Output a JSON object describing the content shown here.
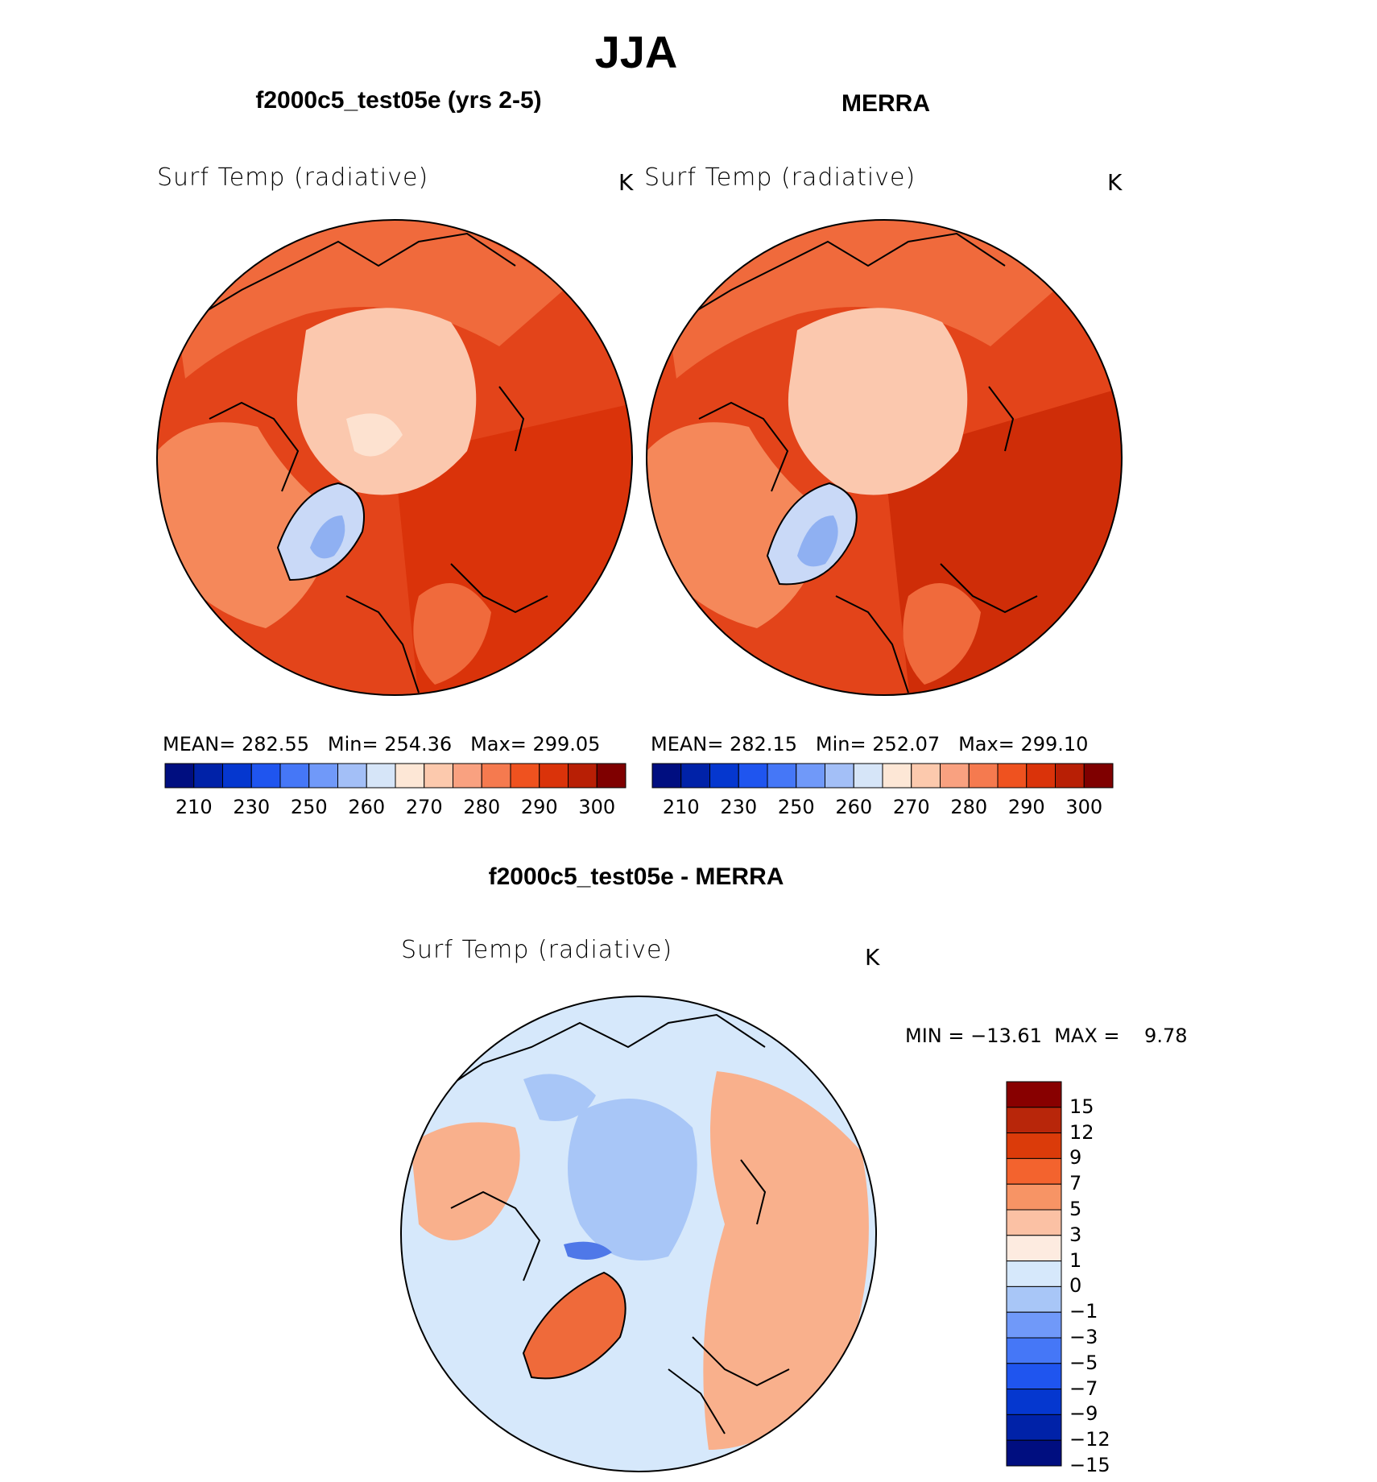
{
  "figure": {
    "title": "JJA",
    "panels": [
      {
        "id": "model",
        "title": "f2000c5_test05e (yrs 2-5)",
        "variable": "Surf Temp (radiative)",
        "units": "K",
        "stats": {
          "mean_label": "MEAN=",
          "mean": "282.55",
          "min_label": "Min=",
          "min": "254.36",
          "max_label": "Max=",
          "max": "299.05"
        }
      },
      {
        "id": "obs",
        "title": "MERRA",
        "variable": "Surf Temp (radiative)",
        "units": "K",
        "stats": {
          "mean_label": "MEAN=",
          "mean": "282.15",
          "min_label": "Min=",
          "min": "252.07",
          "max_label": "Max=",
          "max": "299.10"
        }
      }
    ],
    "abs_colorbar": {
      "colors": [
        "#000e80",
        "#0022a8",
        "#0537cf",
        "#1f55ef",
        "#4577f7",
        "#7099f9",
        "#a3bff7",
        "#d6e5f8",
        "#fde7d6",
        "#fcc9ad",
        "#f9a180",
        "#f57a4f",
        "#ef521f",
        "#da330a",
        "#b81f05",
        "#7f0000"
      ],
      "tick_labels": [
        "210",
        "230",
        "250",
        "260",
        "270",
        "280",
        "290",
        "300"
      ]
    },
    "diff_panel": {
      "title": "f2000c5_test05e - MERRA",
      "variable": "Surf Temp (radiative)",
      "units": "K",
      "stats": {
        "min_label": "MIN =",
        "min": "−13.61",
        "max_label": "MAX =",
        "max": "9.78"
      },
      "colorbar": {
        "colors": [
          "#000e80",
          "#0022a8",
          "#0537cf",
          "#1f55ef",
          "#4577f7",
          "#7099f9",
          "#a8c6f7",
          "#d6e8fb",
          "#fdebe0",
          "#fbc1a4",
          "#f79465",
          "#f3632e",
          "#db3b0a",
          "#b8260a",
          "#880000"
        ],
        "tick_labels": [
          "15",
          "12",
          "9",
          "7",
          "5",
          "3",
          "1",
          "0",
          "−1",
          "−3",
          "−5",
          "−7",
          "−9",
          "−12",
          "−15"
        ]
      }
    },
    "map_colors": {
      "ocean_warm": "#e3441a",
      "ocean_warmer": "#cf2d08",
      "mid_warm": "#f06a3c",
      "land_warm": "#f5885a",
      "arctic": "#fbc8ae",
      "arctic_light": "#fde2d0",
      "greenland_cold": "#c9d9f7",
      "greenland_core": "#8fb0f2",
      "diff_base": "#d6e8fb",
      "diff_warm": "#f9b08c",
      "diff_hot": "#ef6a3a",
      "diff_cool": "#a8c6f7",
      "diff_cold": "#4f78e8"
    }
  }
}
